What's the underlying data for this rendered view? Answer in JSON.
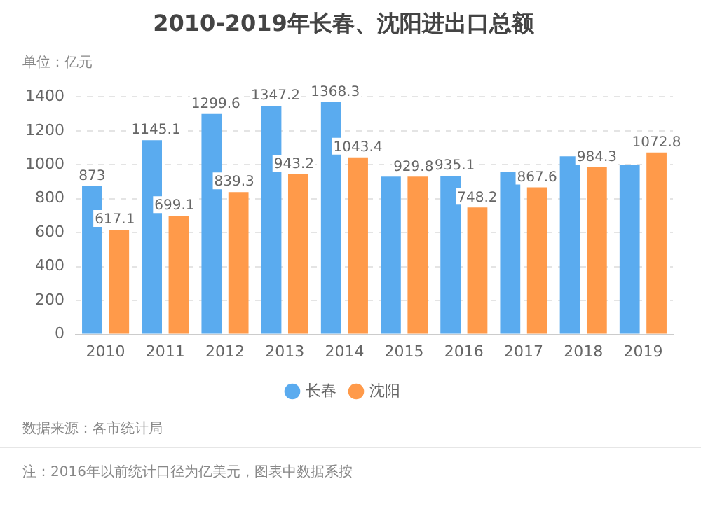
{
  "chart_data": {
    "type": "bar",
    "title": "2010-2019年长春、沈阳进出口总额",
    "ylabel": "单位：亿元",
    "categories": [
      "2010",
      "2011",
      "2012",
      "2013",
      "2014",
      "2015",
      "2016",
      "2017",
      "2018",
      "2019"
    ],
    "series": [
      {
        "name": "长春",
        "color": "#5aabef",
        "values": [
          873,
          1145.1,
          1299.6,
          1347.2,
          1368.3,
          930,
          935.1,
          960,
          1050,
          1000
        ],
        "value_labels": [
          "873",
          "1145.1",
          "1299.6",
          "1347.2",
          "1368.3",
          null,
          "935.1",
          null,
          null,
          null
        ]
      },
      {
        "name": "沈阳",
        "color": "#ff9a4a",
        "values": [
          617.1,
          699.1,
          839.3,
          943.2,
          1043.4,
          929.8,
          748.2,
          867.6,
          984.3,
          1072.8
        ],
        "value_labels": [
          "617.1",
          "699.1",
          "839.3",
          "943.2",
          "1043.4",
          "929.8",
          "748.2",
          "867.6",
          "984.3",
          "1072.8"
        ]
      }
    ],
    "ylim": [
      0,
      1400
    ],
    "yticks": [
      0,
      200,
      400,
      600,
      800,
      1000,
      1200,
      1400
    ],
    "grid": "y",
    "legend": "bottom",
    "annotations": [
      "数据来源：各市统计局",
      "注：2016年以前统计口径为亿美元，图表中数据系按"
    ]
  }
}
